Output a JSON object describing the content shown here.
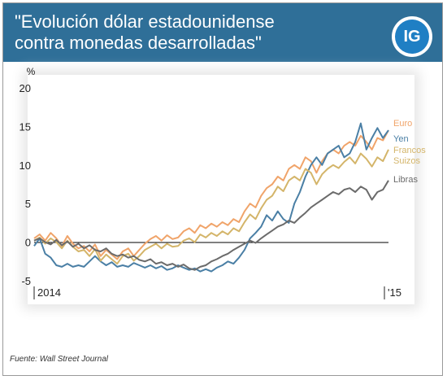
{
  "header": {
    "title": "\"Evolución dólar estadounidense\ncontra monedas desarrolladas\"",
    "logo_text": "IG"
  },
  "source": "Fuente: Wall Street Journal",
  "colors": {
    "header_bg": "#2f6f98",
    "euro": "#f0a46a",
    "yen": "#4a7fa5",
    "francos_suizos": "#d4b56a",
    "libras": "#6b6b6b"
  },
  "chart_data": {
    "type": "line",
    "ylabel": "%",
    "ylim": [
      -5,
      20
    ],
    "yticks": [
      "20",
      "15",
      "10",
      "5",
      "0",
      "-5"
    ],
    "xtick_labels": [
      "2014",
      "'15"
    ],
    "grid": false,
    "legend_position": "right",
    "x": [
      0,
      1,
      2,
      3,
      4,
      5,
      6,
      7,
      8,
      9,
      10,
      11,
      12,
      13,
      14,
      15,
      16,
      17,
      18,
      19,
      20,
      21,
      22,
      23,
      24,
      25,
      26,
      27,
      28,
      29,
      30,
      31,
      32,
      33,
      34,
      35,
      36,
      37,
      38,
      39,
      40,
      41,
      42,
      43,
      44,
      45,
      46,
      47,
      48,
      49,
      50,
      51,
      52,
      53,
      54,
      55,
      56,
      57,
      58,
      59,
      60,
      61,
      62,
      63,
      64
    ],
    "series": [
      {
        "name": "Euro",
        "values": [
          0.5,
          1.0,
          0.2,
          1.2,
          0.5,
          -0.5,
          0.8,
          -0.2,
          -0.8,
          -0.5,
          -1.2,
          -0.3,
          -1.8,
          -1.0,
          -1.6,
          -2.2,
          -1.2,
          -0.8,
          -1.8,
          -1.0,
          -0.2,
          0.4,
          0.8,
          0.2,
          0.9,
          0.4,
          0.6,
          1.4,
          1.8,
          1.2,
          2.2,
          1.8,
          2.4,
          2.0,
          2.6,
          2.2,
          3.0,
          2.6,
          4.0,
          5.0,
          4.5,
          6.0,
          7.0,
          7.5,
          8.5,
          8.0,
          9.5,
          10.0,
          9.5,
          11.0,
          10.5,
          9.0,
          10.5,
          11.5,
          12.0,
          11.5,
          12.5,
          13.0,
          12.5,
          13.8,
          13.0,
          12.0,
          13.5,
          13.2,
          14.5
        ]
      },
      {
        "name": "Yen",
        "values": [
          -0.5,
          0.5,
          -1.5,
          -2.0,
          -3.0,
          -3.2,
          -2.8,
          -3.2,
          -3.0,
          -3.2,
          -2.5,
          -1.8,
          -2.5,
          -3.0,
          -2.6,
          -3.2,
          -3.0,
          -3.2,
          -2.7,
          -3.0,
          -3.3,
          -3.0,
          -3.4,
          -3.1,
          -3.6,
          -3.4,
          -3.0,
          -3.3,
          -3.6,
          -3.4,
          -3.8,
          -3.5,
          -3.8,
          -3.3,
          -3.0,
          -2.5,
          -2.8,
          -2.0,
          -1.0,
          0.5,
          1.2,
          2.0,
          3.5,
          2.8,
          4.0,
          3.0,
          2.5,
          5.0,
          6.5,
          8.5,
          10.0,
          11.0,
          10.0,
          11.5,
          12.0,
          12.5,
          11.0,
          11.5,
          13.0,
          15.4,
          12.0,
          13.5,
          14.8,
          13.5,
          14.5
        ]
      },
      {
        "name": "Francos\nSuizos",
        "values": [
          0.2,
          0.6,
          -0.2,
          0.5,
          0.0,
          -0.8,
          0.2,
          -0.6,
          -1.2,
          -1.0,
          -1.8,
          -0.9,
          -2.4,
          -1.6,
          -2.2,
          -2.8,
          -1.8,
          -1.5,
          -2.4,
          -1.8,
          -1.0,
          -0.6,
          -0.2,
          -0.8,
          -0.2,
          -0.6,
          -0.5,
          0.2,
          0.5,
          0.0,
          1.0,
          0.6,
          1.2,
          0.8,
          1.4,
          1.0,
          1.8,
          1.4,
          2.6,
          3.6,
          3.0,
          4.4,
          5.5,
          6.0,
          7.2,
          6.6,
          8.0,
          8.5,
          8.0,
          9.5,
          9.0,
          7.5,
          8.8,
          9.5,
          10.0,
          9.6,
          10.4,
          11.0,
          10.2,
          11.5,
          10.8,
          9.8,
          11.0,
          10.5,
          12.0
        ]
      },
      {
        "name": "Libras",
        "values": [
          0.2,
          0.5,
          0.0,
          -0.3,
          0.3,
          -0.4,
          0.1,
          -0.6,
          -0.2,
          -0.8,
          -0.4,
          -1.0,
          -1.2,
          -0.8,
          -1.5,
          -1.8,
          -1.6,
          -2.0,
          -1.8,
          -2.3,
          -2.5,
          -2.2,
          -2.8,
          -2.6,
          -3.0,
          -2.8,
          -3.2,
          -2.9,
          -3.4,
          -3.6,
          -3.2,
          -3.0,
          -2.5,
          -2.2,
          -1.8,
          -1.5,
          -1.0,
          -0.6,
          -0.2,
          0.2,
          -0.1,
          0.5,
          1.0,
          1.5,
          2.0,
          2.3,
          2.8,
          2.5,
          3.2,
          3.8,
          4.5,
          5.0,
          5.5,
          6.0,
          6.5,
          6.2,
          6.8,
          7.0,
          6.5,
          7.2,
          6.8,
          5.5,
          6.5,
          6.8,
          8.0
        ]
      }
    ]
  }
}
